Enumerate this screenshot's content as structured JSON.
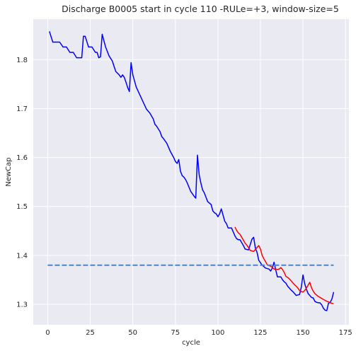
{
  "chart_data": {
    "type": "line",
    "title": "Discharge B0005 start in cycle 110 -RULe=+3, window-size=5",
    "xlabel": "cycle",
    "ylabel": "NewCap",
    "xlim": [
      -8.5,
      177
    ],
    "ylim": [
      1.258,
      1.883
    ],
    "xticks": [
      0,
      25,
      50,
      75,
      100,
      125,
      150,
      175
    ],
    "xtick_labels": [
      "0",
      "25",
      "50",
      "75",
      "100",
      "125",
      "150",
      "175"
    ],
    "yticks": [
      1.3,
      1.4,
      1.5,
      1.6,
      1.7,
      1.8
    ],
    "ytick_labels": [
      "1.3",
      "1.4",
      "1.5",
      "1.6",
      "1.7",
      "1.8"
    ],
    "grid": true,
    "background": "#eaeaf2",
    "series": [
      {
        "color": "#0000ff",
        "style": "solid",
        "x": [
          1,
          3,
          5,
          7,
          9,
          11,
          13,
          15,
          17,
          19,
          20,
          21,
          22,
          24,
          26,
          28,
          29,
          30,
          31,
          32,
          34,
          36,
          38,
          39,
          40,
          42,
          43,
          44,
          45,
          46,
          47,
          48,
          49,
          50,
          52,
          54,
          56,
          58,
          60,
          62,
          63,
          64,
          66,
          67,
          68,
          70,
          72,
          74,
          75,
          76,
          77,
          78,
          79,
          80,
          81,
          82,
          84,
          86,
          87,
          88,
          89,
          90,
          91,
          92,
          94,
          96,
          97,
          98,
          99,
          100,
          101,
          102,
          104,
          105,
          106,
          108,
          110,
          111,
          112,
          113,
          114,
          115,
          116,
          118,
          120,
          121,
          122,
          123,
          124,
          126,
          128,
          130,
          131,
          132,
          133,
          134,
          135,
          137,
          138,
          139,
          140,
          141,
          143,
          144,
          145,
          146,
          147,
          148,
          149,
          150,
          151,
          152,
          153,
          154,
          155,
          156,
          157,
          158,
          159,
          160,
          161,
          162,
          163,
          164,
          165,
          166,
          167,
          168
        ],
        "y": [
          1.858,
          1.836,
          1.836,
          1.836,
          1.826,
          1.826,
          1.815,
          1.815,
          1.804,
          1.804,
          1.804,
          1.848,
          1.848,
          1.826,
          1.826,
          1.815,
          1.815,
          1.804,
          1.806,
          1.852,
          1.826,
          1.808,
          1.797,
          1.786,
          1.776,
          1.769,
          1.764,
          1.769,
          1.764,
          1.754,
          1.743,
          1.735,
          1.794,
          1.769,
          1.744,
          1.729,
          1.714,
          1.699,
          1.691,
          1.679,
          1.668,
          1.664,
          1.653,
          1.643,
          1.639,
          1.629,
          1.613,
          1.6,
          1.592,
          1.588,
          1.596,
          1.572,
          1.563,
          1.56,
          1.555,
          1.548,
          1.531,
          1.521,
          1.517,
          1.605,
          1.565,
          1.548,
          1.534,
          1.528,
          1.51,
          1.504,
          1.491,
          1.487,
          1.485,
          1.479,
          1.485,
          1.495,
          1.47,
          1.465,
          1.456,
          1.456,
          1.44,
          1.434,
          1.432,
          1.432,
          1.426,
          1.42,
          1.413,
          1.411,
          1.433,
          1.437,
          1.415,
          1.406,
          1.39,
          1.38,
          1.374,
          1.372,
          1.368,
          1.374,
          1.386,
          1.37,
          1.356,
          1.356,
          1.35,
          1.346,
          1.343,
          1.337,
          1.329,
          1.326,
          1.322,
          1.318,
          1.319,
          1.32,
          1.335,
          1.36,
          1.342,
          1.331,
          1.322,
          1.318,
          1.314,
          1.313,
          1.306,
          1.304,
          1.303,
          1.303,
          1.299,
          1.292,
          1.288,
          1.287,
          1.302,
          1.304,
          1.311,
          1.325
        ]
      },
      {
        "color": "#ff0000",
        "style": "solid",
        "x": [
          110,
          111,
          112,
          113,
          114,
          115,
          116,
          117,
          118,
          119,
          120,
          121,
          122,
          123,
          124,
          125,
          126,
          127,
          128,
          129,
          130,
          131,
          132,
          133,
          134,
          135,
          136,
          137,
          138,
          139,
          140,
          141,
          142,
          143,
          144,
          145,
          146,
          147,
          148,
          149,
          150,
          151,
          152,
          153,
          154,
          155,
          156,
          157,
          158,
          159,
          160,
          161,
          162,
          163,
          164,
          165,
          166,
          167,
          168
        ],
        "y": [
          1.458,
          1.451,
          1.446,
          1.443,
          1.437,
          1.431,
          1.425,
          1.421,
          1.416,
          1.41,
          1.409,
          1.408,
          1.412,
          1.416,
          1.42,
          1.413,
          1.4,
          1.393,
          1.387,
          1.381,
          1.379,
          1.378,
          1.375,
          1.372,
          1.372,
          1.371,
          1.372,
          1.375,
          1.371,
          1.365,
          1.357,
          1.355,
          1.352,
          1.348,
          1.344,
          1.34,
          1.337,
          1.333,
          1.328,
          1.326,
          1.325,
          1.328,
          1.333,
          1.339,
          1.345,
          1.334,
          1.327,
          1.322,
          1.319,
          1.316,
          1.314,
          1.312,
          1.31,
          1.308,
          1.306,
          1.305,
          1.303,
          1.302,
          1.301
        ]
      },
      {
        "color": "#4a86c8",
        "style": "dashed",
        "x": [
          0,
          168
        ],
        "y": [
          1.38,
          1.38
        ]
      }
    ]
  }
}
